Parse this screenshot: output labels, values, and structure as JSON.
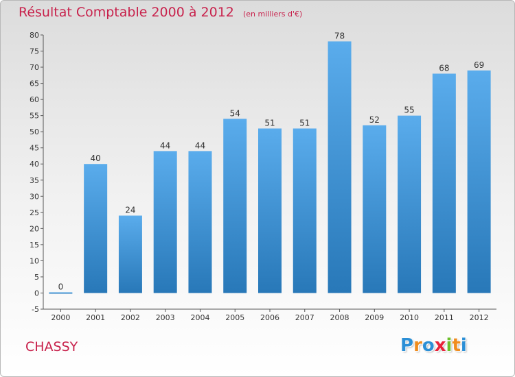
{
  "chart_data": {
    "type": "bar",
    "title": "Résultat Comptable 2000 à 2012",
    "subtitle": "(en milliers d'€)",
    "categories": [
      "2000",
      "2001",
      "2002",
      "2003",
      "2004",
      "2005",
      "2006",
      "2007",
      "2008",
      "2009",
      "2010",
      "2011",
      "2012"
    ],
    "values": [
      0,
      40,
      24,
      44,
      44,
      54,
      51,
      51,
      78,
      52,
      55,
      68,
      69
    ],
    "value_labels": [
      "0",
      "40",
      "24",
      "44",
      "44",
      "54",
      "51",
      "51",
      "78",
      "52",
      "55",
      "68",
      "69"
    ],
    "xlabel": "",
    "ylabel": "",
    "ylim": [
      -5,
      80
    ],
    "yticks": [
      -5,
      0,
      5,
      10,
      15,
      20,
      25,
      30,
      35,
      40,
      45,
      50,
      55,
      60,
      65,
      70,
      75,
      80
    ],
    "ytick_labels": [
      "-5",
      "0",
      "5",
      "10",
      "15",
      "20",
      "25",
      "30",
      "35",
      "40",
      "45",
      "50",
      "55",
      "60",
      "65",
      "70",
      "75",
      "80"
    ],
    "grid": false,
    "bar_color_top": "#5aacec",
    "bar_color_bottom": "#2878b8"
  },
  "footer": {
    "commune": "CHASSY",
    "brand": [
      "P",
      "r",
      "o",
      "x",
      "i",
      "t",
      "i"
    ],
    "brand_colors": [
      "#2b8fd6",
      "#f08c1e",
      "#2b8fd6",
      "#e8233a",
      "#6cbf2a",
      "#f08c1e",
      "#2b8fd6"
    ]
  }
}
